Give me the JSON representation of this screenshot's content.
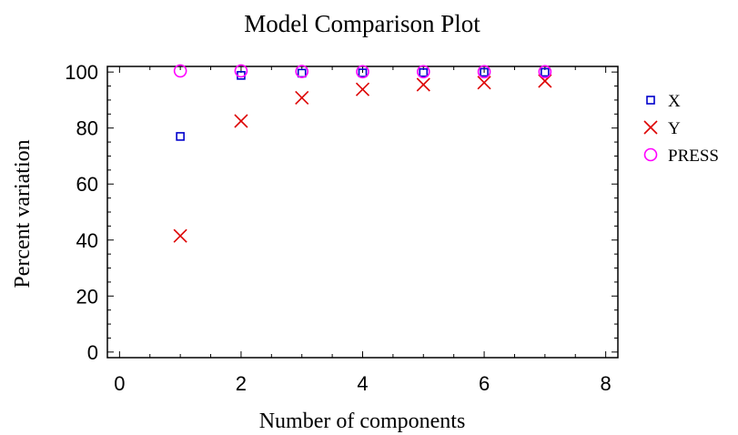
{
  "chart_data": {
    "type": "scatter",
    "title": "Model Comparison Plot",
    "xlabel": "Number of components",
    "ylabel": "Percent variation",
    "xlim": [
      -0.2,
      8.2
    ],
    "ylim": [
      -2,
      102
    ],
    "xticks": [
      0,
      2,
      4,
      6,
      8
    ],
    "yticks": [
      0,
      20,
      40,
      60,
      80,
      100
    ],
    "grid": false,
    "legend_position": "right",
    "series": [
      {
        "name": "X",
        "marker": "square",
        "color": "#0000cc",
        "x": [
          1,
          2,
          3,
          4,
          5,
          6,
          7
        ],
        "y": [
          77,
          98.8,
          99.6,
          99.7,
          99.8,
          99.9,
          99.9
        ]
      },
      {
        "name": "Y",
        "marker": "cross",
        "color": "#dd0000",
        "x": [
          1,
          2,
          3,
          4,
          5,
          6,
          7
        ],
        "y": [
          41.5,
          82.5,
          90.8,
          93.8,
          95.5,
          96.2,
          96.8
        ]
      },
      {
        "name": "PRESS",
        "marker": "circle",
        "color": "#ff00ff",
        "x": [
          1,
          2,
          3,
          4,
          5,
          6,
          7
        ],
        "y": [
          100.4,
          100.4,
          100.2,
          100.1,
          100.1,
          100.1,
          100.1
        ]
      }
    ]
  }
}
